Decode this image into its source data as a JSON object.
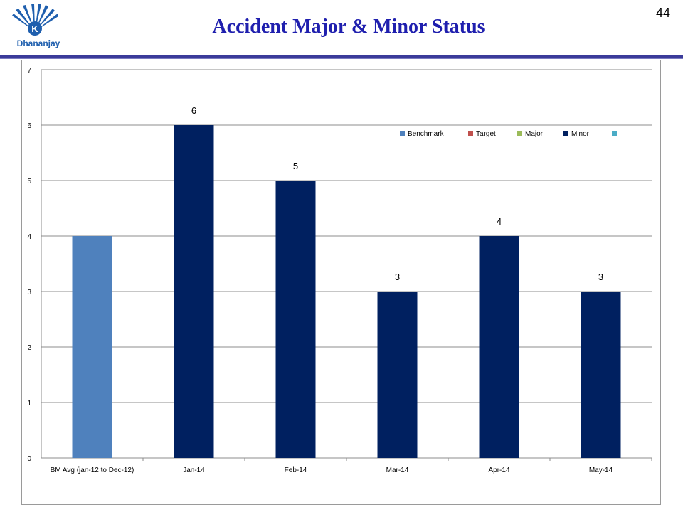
{
  "header": {
    "brand": "Dhananjay",
    "title": "Accident Major & Minor Status",
    "page_number": "44"
  },
  "colors": {
    "benchmark": "#4f81bd",
    "target": "#c0504d",
    "major": "#9bbb59",
    "minor": "#002060",
    "extra": "#4bacc6",
    "title": "#1f1fae"
  },
  "chart_data": {
    "type": "bar",
    "categories": [
      "BM Avg (jan-12 to Dec-12)",
      "Jan-14",
      "Feb-14",
      "Mar-14",
      "Apr-14",
      "May-14"
    ],
    "values": [
      4,
      6,
      5,
      3,
      4,
      3
    ],
    "bar_series": [
      "Benchmark",
      "Minor",
      "Minor",
      "Minor",
      "Minor",
      "Minor"
    ],
    "data_labels": [
      "",
      "6",
      "5",
      "3",
      "4",
      "3"
    ],
    "series": [
      {
        "name": "Benchmark"
      },
      {
        "name": "Target"
      },
      {
        "name": "Major"
      },
      {
        "name": "Minor"
      },
      {
        "name": ""
      }
    ],
    "title": "",
    "xlabel": "",
    "ylabel": "",
    "ylim": [
      0,
      7
    ],
    "yticks": [
      0,
      1,
      2,
      3,
      4,
      5,
      6,
      7
    ],
    "grid": true,
    "legend_position": "top-right"
  }
}
